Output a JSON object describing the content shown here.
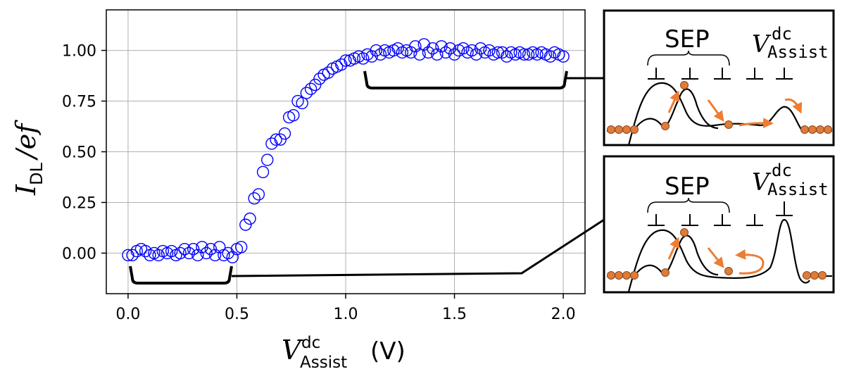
{
  "chart_data": {
    "type": "scatter",
    "xlabel": "V Assist dc (V)",
    "xlabel_parts": {
      "symbol": "V",
      "superscript": "dc",
      "subscript": "Assist",
      "unit": "(V)"
    },
    "ylabel": "I DL / ef",
    "ylabel_parts": {
      "symbol": "I",
      "subscript": "DL",
      "rest": "/ef"
    },
    "xlim": [
      -0.1,
      2.1
    ],
    "ylim": [
      -0.2,
      1.2
    ],
    "xticks": [
      0.0,
      0.5,
      1.0,
      1.5,
      2.0
    ],
    "xtick_labels": [
      "0.0",
      "0.5",
      "1.0",
      "1.5",
      "2.0"
    ],
    "yticks": [
      0.0,
      0.25,
      0.5,
      0.75,
      1.0
    ],
    "ytick_labels": [
      "0.00",
      "0.25",
      "0.50",
      "0.75",
      "1.00"
    ],
    "grid": true,
    "marker": "open-circle",
    "marker_color": "#0000ff",
    "series": [
      {
        "name": "I_DL/ef",
        "x": [
          0.0,
          0.02,
          0.04,
          0.06,
          0.08,
          0.1,
          0.12,
          0.14,
          0.16,
          0.18,
          0.2,
          0.22,
          0.24,
          0.26,
          0.28,
          0.3,
          0.32,
          0.34,
          0.36,
          0.38,
          0.4,
          0.42,
          0.44,
          0.46,
          0.48,
          0.5,
          0.52,
          0.54,
          0.56,
          0.58,
          0.6,
          0.62,
          0.64,
          0.66,
          0.68,
          0.7,
          0.72,
          0.74,
          0.76,
          0.78,
          0.8,
          0.82,
          0.84,
          0.86,
          0.88,
          0.9,
          0.92,
          0.94,
          0.96,
          0.98,
          1.0,
          1.02,
          1.04,
          1.06,
          1.08,
          1.1,
          1.12,
          1.14,
          1.16,
          1.18,
          1.2,
          1.22,
          1.24,
          1.26,
          1.28,
          1.3,
          1.32,
          1.34,
          1.36,
          1.38,
          1.4,
          1.42,
          1.44,
          1.46,
          1.48,
          1.5,
          1.52,
          1.54,
          1.56,
          1.58,
          1.6,
          1.62,
          1.64,
          1.66,
          1.68,
          1.7,
          1.72,
          1.74,
          1.76,
          1.78,
          1.8,
          1.82,
          1.84,
          1.86,
          1.88,
          1.9,
          1.92,
          1.94,
          1.96,
          1.98,
          2.0
        ],
        "y": [
          -0.01,
          -0.01,
          0.01,
          0.02,
          0.01,
          -0.01,
          0.0,
          -0.01,
          0.01,
          0.0,
          0.01,
          -0.01,
          0.0,
          0.02,
          0.0,
          0.02,
          -0.01,
          0.03,
          0.0,
          0.02,
          -0.01,
          0.03,
          -0.01,
          0.0,
          -0.02,
          0.02,
          0.03,
          0.14,
          0.17,
          0.27,
          0.29,
          0.4,
          0.46,
          0.54,
          0.56,
          0.56,
          0.59,
          0.67,
          0.68,
          0.75,
          0.74,
          0.79,
          0.81,
          0.83,
          0.86,
          0.88,
          0.89,
          0.91,
          0.92,
          0.93,
          0.95,
          0.95,
          0.96,
          0.97,
          0.96,
          0.98,
          0.97,
          1.0,
          0.98,
          1.0,
          0.99,
          1.0,
          1.01,
          0.99,
          1.0,
          0.99,
          1.02,
          0.98,
          1.03,
          0.99,
          1.01,
          0.98,
          1.02,
          0.99,
          1.01,
          0.98,
          1.0,
          1.01,
          0.99,
          1.0,
          0.98,
          1.01,
          0.99,
          1.0,
          0.98,
          0.99,
          0.99,
          0.97,
          0.99,
          0.98,
          0.99,
          0.98,
          0.98,
          0.99,
          0.98,
          0.99,
          0.98,
          0.97,
          0.99,
          0.98,
          0.97
        ]
      }
    ],
    "annotations": [
      {
        "range_x": [
          0.0,
          0.47
        ],
        "label": "low-plateau bracket",
        "inset": "bottom"
      },
      {
        "range_x": [
          1.09,
          2.02
        ],
        "label": "high-plateau bracket",
        "inset": "top"
      }
    ]
  },
  "insets": [
    {
      "position": "top",
      "sep_label": "SEP",
      "v_symbol": "V",
      "v_superscript": "dc",
      "v_subscript": "Assist",
      "state": "transport"
    },
    {
      "position": "bottom",
      "sep_label": "SEP",
      "v_symbol": "V",
      "v_superscript": "dc",
      "v_subscript": "Assist",
      "state": "blocked"
    }
  ],
  "colors": {
    "marker": "#0000ff",
    "electron": "#e07b39",
    "electron_outline": "#8a4a1c",
    "arrow": "#ed7d31",
    "grid": "#b0b0b0"
  }
}
